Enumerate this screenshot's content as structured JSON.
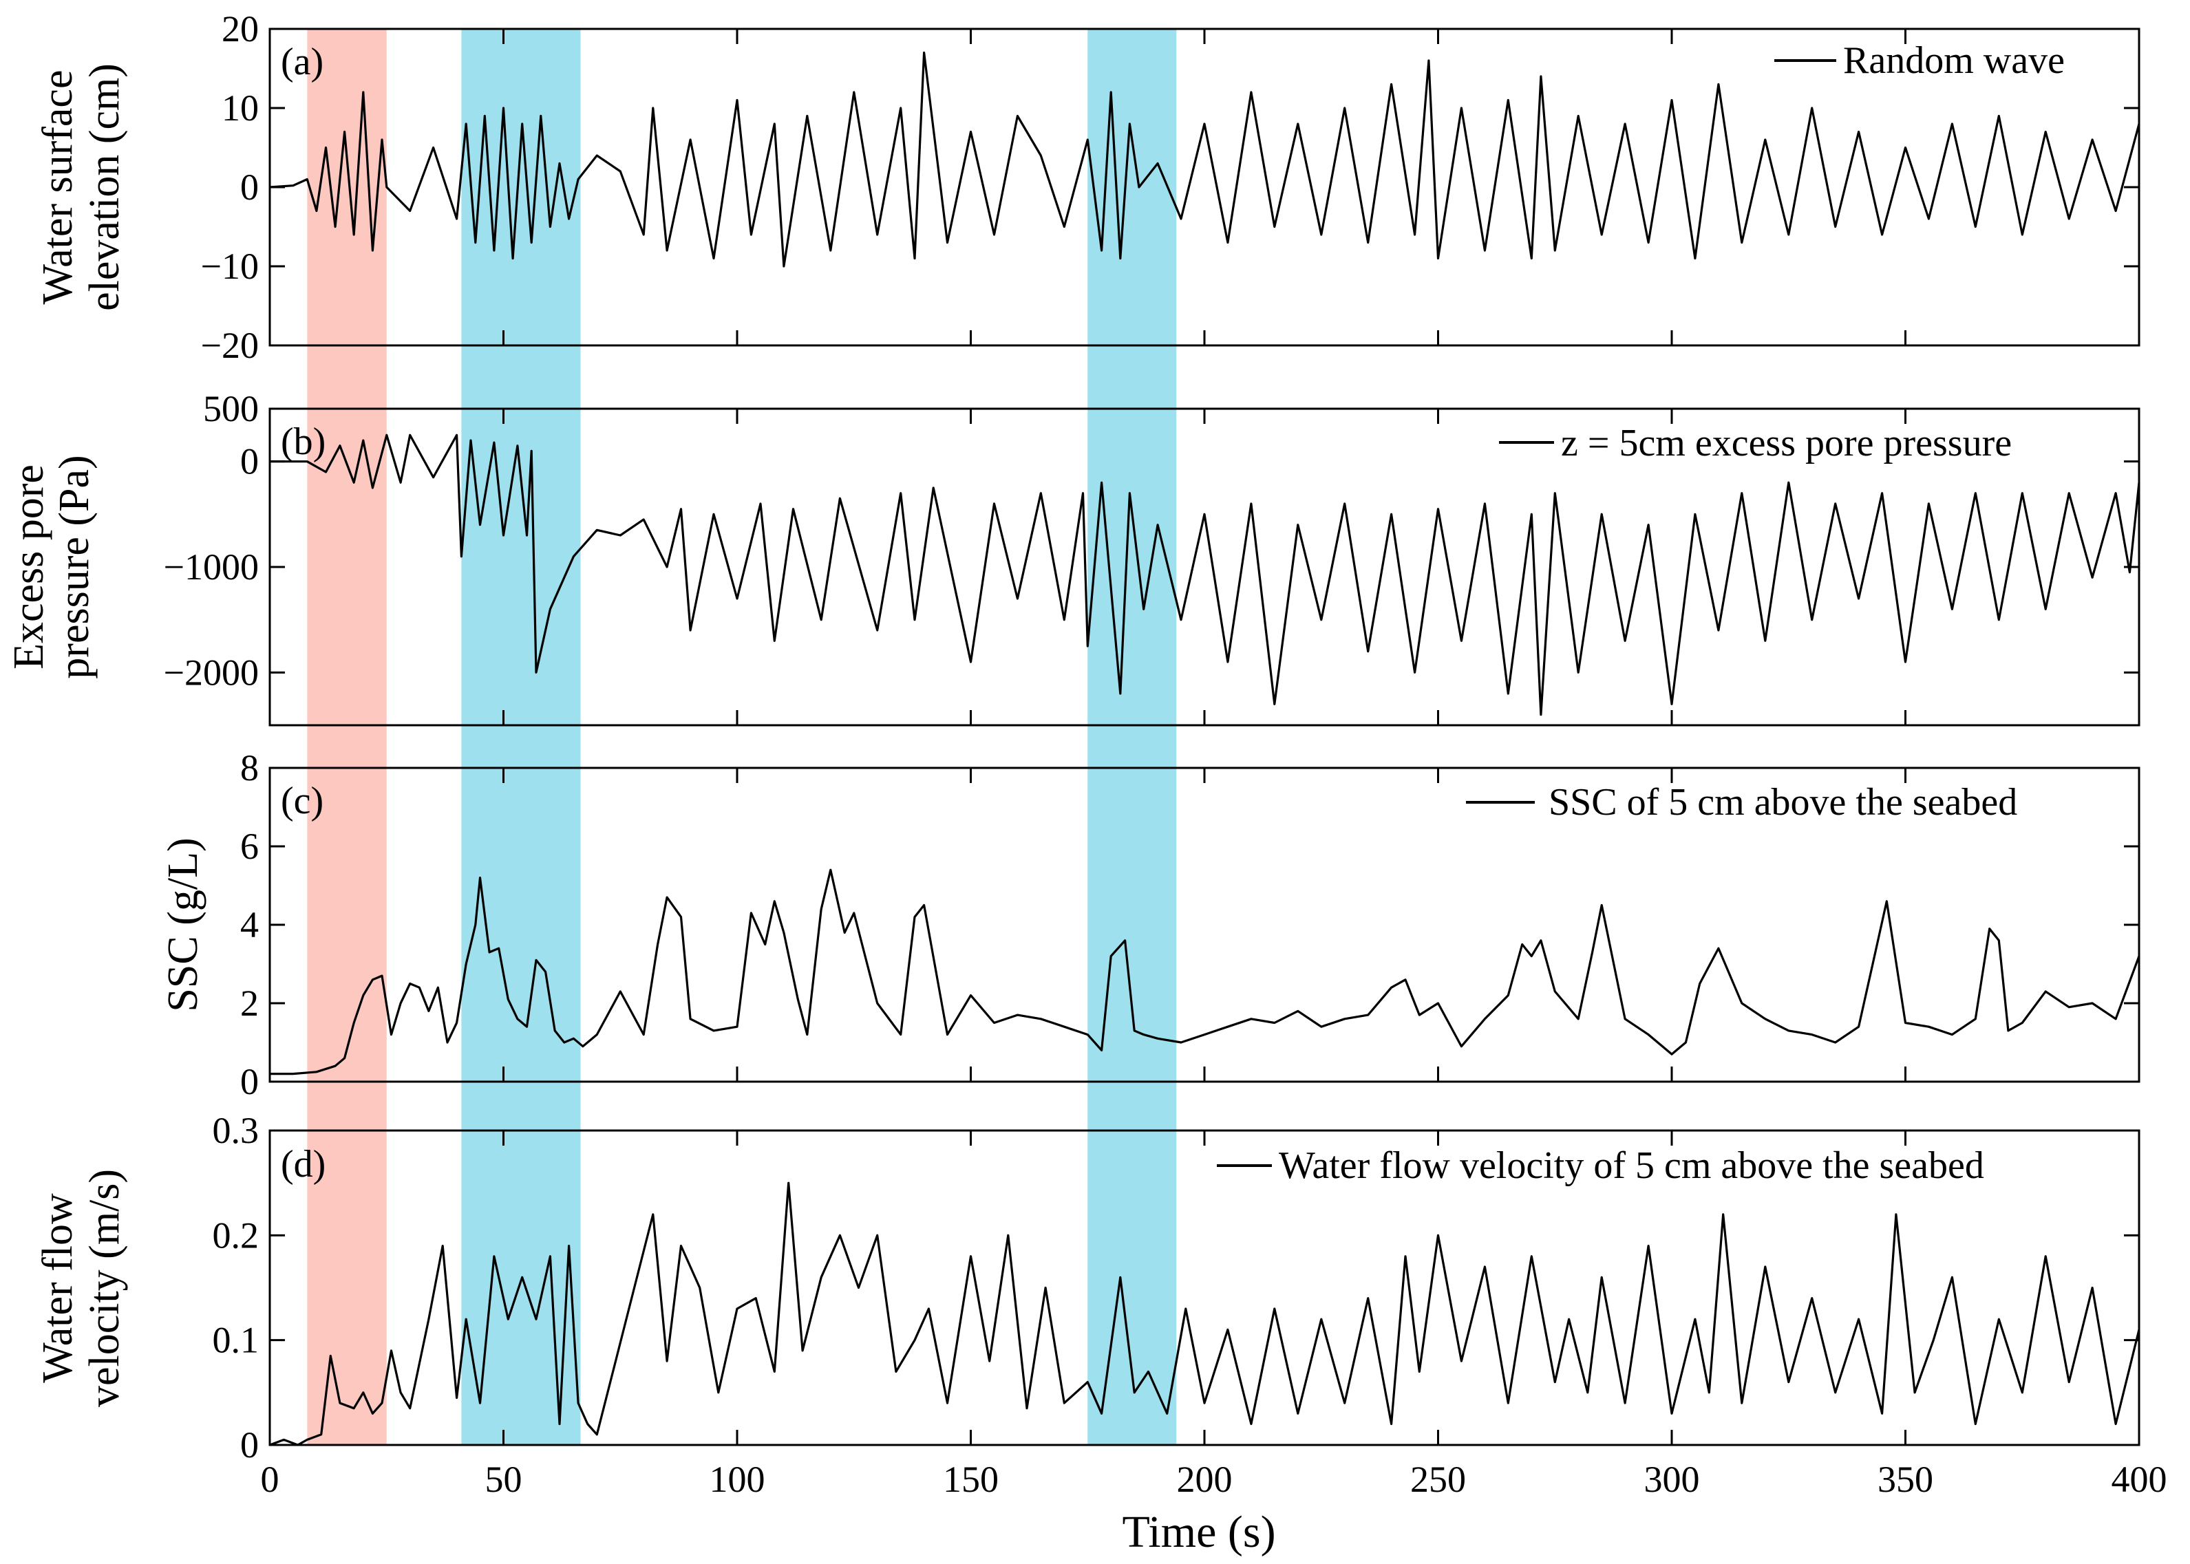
{
  "figure": {
    "xlabel": "Time (s)",
    "xlim": [
      0,
      400
    ],
    "xticks": [
      0,
      50,
      100,
      150,
      200,
      250,
      300,
      350,
      400
    ],
    "shaded_regions": [
      {
        "x0": 8,
        "x1": 25,
        "color": "#fcc8c0"
      },
      {
        "x0": 41,
        "x1": 66.5,
        "color": "#9fe0ee"
      },
      {
        "x0": 175,
        "x1": 194,
        "color": "#9fe0ee"
      }
    ],
    "line_color": "#000000"
  },
  "chart_data": [
    {
      "type": "line",
      "panel": "(a)",
      "ylabel": [
        "Water surface",
        "elevation (cm)"
      ],
      "legend": "Random wave",
      "ylim": [
        -20,
        20
      ],
      "yticks": [
        20,
        10,
        0,
        -10,
        -20
      ],
      "ytick_labels": [
        "20",
        "10",
        "0",
        "−10",
        "−20"
      ],
      "x": [
        0,
        5,
        8,
        10,
        12,
        14,
        16,
        18,
        20,
        22,
        24,
        25,
        30,
        35,
        40,
        42,
        44,
        46,
        48,
        50,
        52,
        54,
        56,
        58,
        60,
        62,
        64,
        66,
        70,
        75,
        80,
        82,
        85,
        90,
        95,
        100,
        103,
        108,
        110,
        115,
        120,
        125,
        130,
        135,
        138,
        140,
        145,
        150,
        155,
        160,
        165,
        170,
        175,
        178,
        180,
        182,
        184,
        186,
        190,
        195,
        200,
        205,
        210,
        215,
        220,
        225,
        230,
        235,
        240,
        245,
        248,
        250,
        255,
        260,
        265,
        270,
        272,
        275,
        280,
        285,
        290,
        295,
        300,
        305,
        310,
        315,
        320,
        325,
        330,
        335,
        340,
        345,
        350,
        355,
        360,
        365,
        370,
        375,
        380,
        385,
        390,
        395,
        400
      ],
      "y": [
        0,
        0.2,
        1,
        -3,
        5,
        -5,
        7,
        -6,
        12,
        -8,
        6,
        0,
        -3,
        5,
        -4,
        8,
        -7,
        9,
        -8,
        10,
        -9,
        8,
        -7,
        9,
        -5,
        3,
        -4,
        1,
        4,
        2,
        -6,
        10,
        -8,
        6,
        -9,
        11,
        -6,
        8,
        -10,
        9,
        -8,
        12,
        -6,
        10,
        -9,
        17,
        -7,
        7,
        -6,
        9,
        4,
        -5,
        6,
        -8,
        12,
        -9,
        8,
        0,
        3,
        -4,
        8,
        -7,
        12,
        -5,
        8,
        -6,
        10,
        -7,
        13,
        -6,
        16,
        -9,
        10,
        -8,
        11,
        -9,
        14,
        -8,
        9,
        -6,
        8,
        -7,
        11,
        -9,
        13,
        -7,
        6,
        -6,
        10,
        -5,
        7,
        -6,
        5,
        -4,
        8,
        -5,
        9,
        -6,
        7,
        -4,
        6,
        -3,
        8
      ]
    },
    {
      "type": "line",
      "panel": "(b)",
      "ylabel": [
        "Excess pore",
        "pressure (Pa)"
      ],
      "legend": "z = 5cm excess pore  pressure",
      "ylim": [
        -2500,
        500
      ],
      "yticks": [
        500,
        0,
        -1000,
        -2000
      ],
      "ytick_labels": [
        "500",
        "0",
        "−1000",
        "−2000"
      ],
      "x": [
        0,
        8,
        12,
        15,
        18,
        20,
        22,
        25,
        28,
        30,
        35,
        40,
        41,
        43,
        45,
        48,
        50,
        53,
        55,
        56,
        57,
        60,
        65,
        70,
        75,
        80,
        85,
        88,
        90,
        95,
        100,
        105,
        108,
        112,
        118,
        122,
        130,
        135,
        138,
        142,
        150,
        155,
        160,
        165,
        170,
        174,
        175,
        178,
        182,
        184,
        187,
        190,
        195,
        200,
        205,
        210,
        215,
        220,
        225,
        230,
        235,
        240,
        245,
        250,
        255,
        260,
        265,
        270,
        272,
        275,
        280,
        285,
        290,
        295,
        300,
        305,
        310,
        315,
        320,
        325,
        330,
        335,
        340,
        345,
        350,
        355,
        360,
        365,
        370,
        375,
        380,
        385,
        390,
        395,
        398,
        400
      ],
      "y": [
        0,
        0,
        -100,
        150,
        -200,
        200,
        -250,
        250,
        -200,
        250,
        -150,
        250,
        -900,
        200,
        -600,
        180,
        -700,
        150,
        -700,
        100,
        -2000,
        -1400,
        -900,
        -650,
        -700,
        -550,
        -1000,
        -450,
        -1600,
        -500,
        -1300,
        -400,
        -1700,
        -450,
        -1500,
        -350,
        -1600,
        -300,
        -1500,
        -250,
        -1900,
        -400,
        -1300,
        -300,
        -1500,
        -300,
        -1750,
        -200,
        -2200,
        -300,
        -1400,
        -600,
        -1500,
        -500,
        -1900,
        -400,
        -2300,
        -600,
        -1500,
        -400,
        -1800,
        -500,
        -2000,
        -450,
        -1700,
        -400,
        -2200,
        -500,
        -2400,
        -300,
        -2000,
        -500,
        -1700,
        -600,
        -2300,
        -500,
        -1600,
        -300,
        -1700,
        -200,
        -1500,
        -400,
        -1300,
        -300,
        -1900,
        -400,
        -1400,
        -300,
        -1500,
        -300,
        -1400,
        -300,
        -1100,
        -300,
        -1050,
        -200
      ]
    },
    {
      "type": "line",
      "panel": "(c)",
      "ylabel": [
        "SSC (g/L)"
      ],
      "legend": "SSC of 5 cm above the seabed",
      "ylim": [
        0,
        8
      ],
      "yticks": [
        8,
        6,
        4,
        2,
        0
      ],
      "ytick_labels": [
        "8",
        "6",
        "4",
        "2",
        "0"
      ],
      "x": [
        0,
        5,
        10,
        14,
        16,
        18,
        20,
        22,
        24,
        26,
        28,
        30,
        32,
        34,
        36,
        38,
        40,
        42,
        44,
        45,
        47,
        49,
        51,
        53,
        55,
        57,
        59,
        61,
        63,
        65,
        67,
        70,
        75,
        80,
        83,
        85,
        88,
        90,
        95,
        100,
        103,
        106,
        108,
        110,
        113,
        115,
        118,
        120,
        123,
        125,
        130,
        135,
        138,
        140,
        145,
        150,
        155,
        160,
        165,
        170,
        175,
        178,
        180,
        183,
        185,
        187,
        190,
        195,
        200,
        205,
        210,
        215,
        220,
        225,
        230,
        235,
        240,
        243,
        246,
        250,
        255,
        260,
        265,
        268,
        270,
        272,
        275,
        280,
        283,
        285,
        290,
        295,
        300,
        303,
        306,
        310,
        315,
        320,
        325,
        330,
        335,
        340,
        343,
        346,
        350,
        355,
        360,
        365,
        368,
        370,
        372,
        375,
        380,
        385,
        390,
        395,
        400
      ],
      "y": [
        0.2,
        0.2,
        0.25,
        0.4,
        0.6,
        1.5,
        2.2,
        2.6,
        2.7,
        1.2,
        2.0,
        2.5,
        2.4,
        1.8,
        2.4,
        1.0,
        1.5,
        3.0,
        4.0,
        5.2,
        3.3,
        3.4,
        2.1,
        1.6,
        1.4,
        3.1,
        2.8,
        1.3,
        1.0,
        1.1,
        0.9,
        1.2,
        2.3,
        1.2,
        3.5,
        4.7,
        4.2,
        1.6,
        1.3,
        1.4,
        4.3,
        3.5,
        4.6,
        3.8,
        2.1,
        1.2,
        4.4,
        5.4,
        3.8,
        4.3,
        2.0,
        1.2,
        4.2,
        4.5,
        1.2,
        2.2,
        1.5,
        1.7,
        1.6,
        1.4,
        1.2,
        0.8,
        3.2,
        3.6,
        1.3,
        1.2,
        1.1,
        1.0,
        1.2,
        1.4,
        1.6,
        1.5,
        1.8,
        1.4,
        1.6,
        1.7,
        2.4,
        2.6,
        1.7,
        2.0,
        0.9,
        1.6,
        2.2,
        3.5,
        3.2,
        3.6,
        2.3,
        1.6,
        3.3,
        4.5,
        1.6,
        1.2,
        0.7,
        1.0,
        2.5,
        3.4,
        2.0,
        1.6,
        1.3,
        1.2,
        1.0,
        1.4,
        3.0,
        4.6,
        1.5,
        1.4,
        1.2,
        1.6,
        3.9,
        3.6,
        1.3,
        1.5,
        2.3,
        1.9,
        2.0,
        1.6,
        3.2
      ]
    },
    {
      "type": "line",
      "panel": "(d)",
      "ylabel": [
        "Water flow",
        "velocity (m/s)"
      ],
      "legend": "Water flow velocity of 5 cm above the seabed",
      "ylim": [
        0,
        0.3
      ],
      "yticks": [
        0.3,
        0.2,
        0.1,
        0
      ],
      "ytick_labels": [
        "0.3",
        "0.2",
        "0.1",
        "0"
      ],
      "x": [
        0,
        3,
        6,
        8,
        11,
        13,
        15,
        18,
        20,
        22,
        24,
        26,
        28,
        30,
        34,
        37,
        40,
        42,
        45,
        48,
        51,
        54,
        57,
        60,
        62,
        64,
        66,
        68,
        70,
        74,
        78,
        82,
        85,
        88,
        92,
        96,
        100,
        104,
        108,
        111,
        114,
        118,
        122,
        126,
        130,
        134,
        138,
        141,
        145,
        150,
        154,
        158,
        162,
        166,
        170,
        175,
        178,
        182,
        185,
        188,
        192,
        196,
        200,
        205,
        210,
        215,
        220,
        225,
        230,
        235,
        240,
        243,
        246,
        250,
        255,
        260,
        265,
        270,
        275,
        278,
        282,
        285,
        290,
        295,
        300,
        305,
        308,
        311,
        315,
        320,
        325,
        330,
        335,
        340,
        345,
        348,
        352,
        356,
        360,
        365,
        370,
        375,
        380,
        385,
        390,
        395,
        400
      ],
      "y": [
        0.0,
        0.005,
        0.0,
        0.005,
        0.01,
        0.085,
        0.04,
        0.035,
        0.05,
        0.03,
        0.04,
        0.09,
        0.05,
        0.035,
        0.12,
        0.19,
        0.045,
        0.12,
        0.04,
        0.18,
        0.12,
        0.16,
        0.12,
        0.18,
        0.02,
        0.19,
        0.04,
        0.02,
        0.01,
        0.08,
        0.15,
        0.22,
        0.08,
        0.19,
        0.15,
        0.05,
        0.13,
        0.14,
        0.07,
        0.25,
        0.09,
        0.16,
        0.2,
        0.15,
        0.2,
        0.07,
        0.1,
        0.13,
        0.04,
        0.18,
        0.08,
        0.2,
        0.035,
        0.15,
        0.04,
        0.06,
        0.03,
        0.16,
        0.05,
        0.07,
        0.03,
        0.13,
        0.04,
        0.11,
        0.02,
        0.13,
        0.03,
        0.12,
        0.04,
        0.14,
        0.02,
        0.18,
        0.07,
        0.2,
        0.08,
        0.17,
        0.04,
        0.18,
        0.06,
        0.12,
        0.05,
        0.16,
        0.04,
        0.19,
        0.03,
        0.12,
        0.05,
        0.22,
        0.04,
        0.17,
        0.06,
        0.14,
        0.05,
        0.12,
        0.03,
        0.22,
        0.05,
        0.1,
        0.16,
        0.02,
        0.12,
        0.05,
        0.18,
        0.06,
        0.15,
        0.02,
        0.11
      ]
    }
  ]
}
